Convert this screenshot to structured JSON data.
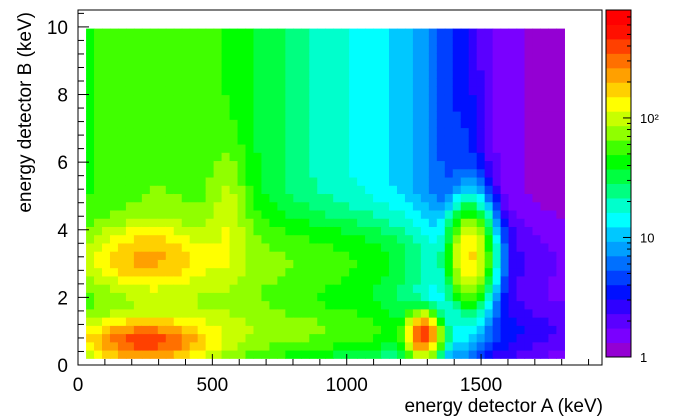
{
  "chart_data": {
    "type": "heatmap",
    "xlabel": "energy detector A (keV)",
    "ylabel": "energy detector B (keV)",
    "xlim": [
      0,
      1950
    ],
    "ylim": [
      0,
      10.5
    ],
    "x_ticks": [
      0,
      500,
      1000,
      1500
    ],
    "y_ticks": [
      0,
      2,
      4,
      6,
      8,
      10
    ],
    "data_extent": {
      "x": [
        30,
        1810
      ],
      "y": [
        0.2,
        9.95
      ]
    },
    "colorbar": {
      "scale": "log",
      "range": [
        1,
        800
      ],
      "tick_labels": [
        {
          "value": 1,
          "label": "1"
        },
        {
          "value": 10,
          "label": "10"
        },
        {
          "value": 100,
          "label": "10²"
        }
      ],
      "colors": [
        "#9400d3",
        "#7a00ff",
        "#5a00ff",
        "#2f00ff",
        "#0010ff",
        "#0040ff",
        "#0070ff",
        "#00a0ff",
        "#00c8ff",
        "#00ffff",
        "#00ffcc",
        "#00ff80",
        "#00ff40",
        "#00ff00",
        "#40ff00",
        "#90ff00",
        "#c8ff00",
        "#ffff00",
        "#ffd000",
        "#ffa000",
        "#ff7000",
        "#ff4000",
        "#ff1000",
        "#ff0000"
      ]
    },
    "components": [
      {
        "feature": "background",
        "x": 800,
        "y": 5,
        "sx": 1000000.0,
        "sy": 1000000.0,
        "amp": 14
      },
      {
        "feature": "low-A vertical band",
        "x": 300,
        "y": 5,
        "sx": 290,
        "sy": 100,
        "amp": 50
      },
      {
        "feature": "ridge near 550 keV",
        "x": 560,
        "y": 4.5,
        "sx": 45,
        "sy": 1.2,
        "amp": 50
      },
      {
        "feature": "horizontal band near 3 keV",
        "x": 800,
        "y": 3.0,
        "sx": 520,
        "sy": 0.9,
        "amp": 40
      },
      {
        "feature": "horizontal band near 1 keV",
        "x": 800,
        "y": 1.0,
        "sx": 620,
        "sy": 0.55,
        "amp": 45
      },
      {
        "feature": "peak at (250, 3.2)",
        "x": 250,
        "y": 3.2,
        "sx": 130,
        "sy": 0.55,
        "amp": 130
      },
      {
        "feature": "peak at (250, 0.7)",
        "x": 250,
        "y": 0.7,
        "sx": 130,
        "sy": 0.35,
        "amp": 300
      },
      {
        "feature": "peak at (1290, 0.9)",
        "x": 1290,
        "y": 0.9,
        "sx": 35,
        "sy": 0.35,
        "amp": 700
      },
      {
        "feature": "peak at (1470, 3.2)",
        "x": 1470,
        "y": 3.2,
        "sx": 45,
        "sy": 0.8,
        "amp": 800
      },
      {
        "feature": "ridge near 1460 keV",
        "x": 1460,
        "y": 3.0,
        "sx": 40,
        "sy": 2.5,
        "amp": 20
      }
    ]
  }
}
